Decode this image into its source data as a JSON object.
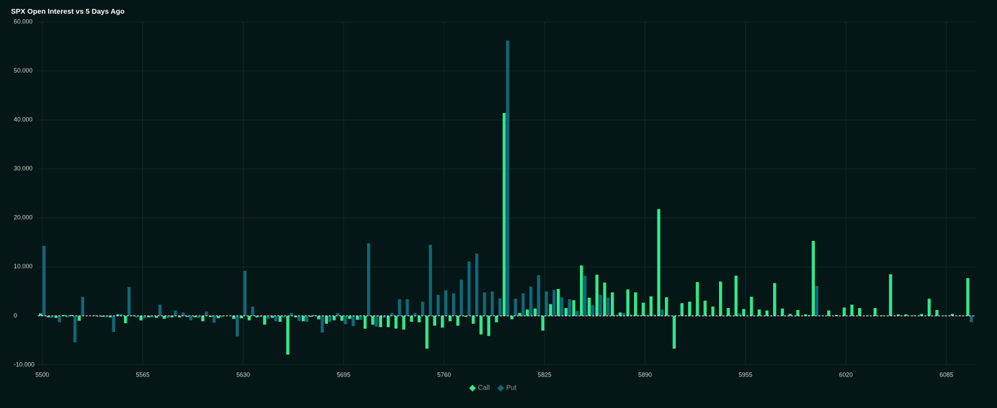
{
  "chart_data": {
    "type": "bar",
    "title": "SPX Open Interest vs 5 Days Ago",
    "x": [
      5500,
      5505,
      5510,
      5515,
      5520,
      5525,
      5530,
      5535,
      5540,
      5545,
      5550,
      5555,
      5560,
      5565,
      5570,
      5575,
      5580,
      5585,
      5590,
      5595,
      5600,
      5605,
      5610,
      5615,
      5620,
      5625,
      5630,
      5635,
      5640,
      5645,
      5650,
      5655,
      5660,
      5665,
      5670,
      5675,
      5680,
      5685,
      5690,
      5695,
      5700,
      5705,
      5710,
      5715,
      5720,
      5725,
      5730,
      5735,
      5740,
      5745,
      5750,
      5755,
      5760,
      5765,
      5770,
      5775,
      5780,
      5785,
      5790,
      5795,
      5800,
      5805,
      5810,
      5815,
      5820,
      5825,
      5830,
      5835,
      5840,
      5845,
      5850,
      5855,
      5860,
      5865,
      5870,
      5875,
      5880,
      5885,
      5890,
      5895,
      5900,
      5905,
      5910,
      5915,
      5920,
      5925,
      5930,
      5935,
      5940,
      5945,
      5950,
      5955,
      5960,
      5965,
      5970,
      5975,
      5980,
      5985,
      5990,
      5995,
      6000,
      6005,
      6010,
      6015,
      6020,
      6025,
      6030,
      6035,
      6040,
      6045,
      6050,
      6055,
      6060,
      6065,
      6070,
      6075,
      6080,
      6085,
      6090,
      6095,
      6100
    ],
    "series": [
      {
        "name": "Call",
        "color": "#2fe98b",
        "values": [
          500,
          -300,
          -400,
          200,
          200,
          -1000,
          0,
          100,
          -200,
          -300,
          300,
          -1500,
          100,
          -900,
          -300,
          -400,
          -600,
          -300,
          -300,
          -200,
          -300,
          -1100,
          -200,
          -500,
          0,
          -600,
          -500,
          -900,
          -300,
          -1800,
          -400,
          -1200,
          -7900,
          -300,
          -1100,
          -200,
          -700,
          -1600,
          -900,
          -1000,
          -600,
          -800,
          -2600,
          -1800,
          -2300,
          -2300,
          -2600,
          -2800,
          -1200,
          -1300,
          -6700,
          -2000,
          -2400,
          -1100,
          -2000,
          -200,
          -1600,
          -3800,
          -4100,
          -1300,
          41400,
          -700,
          600,
          1300,
          1500,
          -3000,
          2400,
          5500,
          1600,
          3200,
          10300,
          3700,
          8400,
          6800,
          4800,
          700,
          5400,
          4800,
          2700,
          4000,
          21800,
          3800,
          -6700,
          2600,
          2900,
          6900,
          3100,
          1900,
          7000,
          1600,
          8200,
          1400,
          3900,
          1300,
          1100,
          6700,
          1500,
          400,
          1200,
          300,
          15300,
          0,
          1100,
          200,
          1700,
          2300,
          1600,
          100,
          1600,
          100,
          8500,
          300,
          300,
          100,
          400,
          3500,
          1200,
          100,
          400,
          100,
          7700
        ]
      },
      {
        "name": "Put",
        "color": "#10687a",
        "values": [
          14300,
          -400,
          -1300,
          -300,
          -5400,
          3900,
          0,
          -200,
          -300,
          -3300,
          400,
          5900,
          -300,
          -500,
          -300,
          2300,
          -400,
          1100,
          700,
          -900,
          -400,
          900,
          -1400,
          -300,
          0,
          -4200,
          9200,
          1900,
          -200,
          -600,
          -1100,
          -300,
          600,
          -1000,
          -1200,
          200,
          -3400,
          -1200,
          600,
          -1700,
          -2100,
          -800,
          14800,
          -2200,
          -400,
          600,
          3400,
          3400,
          600,
          2900,
          14500,
          4300,
          5200,
          4600,
          7400,
          11100,
          12700,
          4800,
          5000,
          3600,
          56200,
          3500,
          4600,
          6000,
          8300,
          5000,
          5300,
          3800,
          3400,
          1000,
          8200,
          2200,
          4300,
          3700,
          200,
          600,
          300,
          200,
          200,
          300,
          1300,
          100,
          0,
          100,
          0,
          100,
          0,
          100,
          0,
          0,
          500,
          100,
          0,
          0,
          0,
          0,
          0,
          0,
          0,
          200,
          6100,
          0,
          0,
          0,
          0,
          0,
          0,
          0,
          0,
          0,
          0,
          0,
          0,
          0,
          0,
          0,
          0,
          0,
          0,
          0,
          -1300
        ]
      }
    ],
    "xlim": [
      5497,
      6104
    ],
    "xticks": [
      5500,
      5565,
      5630,
      5695,
      5760,
      5825,
      5890,
      5955,
      6020,
      6085
    ],
    "ylim": [
      -10000,
      60000
    ],
    "yticks": [
      {
        "value": -10000,
        "label": "-10.000"
      },
      0,
      {
        "value": 10000,
        "label": "10.000"
      },
      {
        "value": 20000,
        "label": "20.000"
      },
      {
        "value": 30000,
        "label": "30.000"
      },
      {
        "value": 40000,
        "label": "40.000"
      },
      {
        "value": 50000,
        "label": "50.000"
      },
      {
        "value": 60000,
        "label": "60.000"
      }
    ],
    "grid": true
  }
}
